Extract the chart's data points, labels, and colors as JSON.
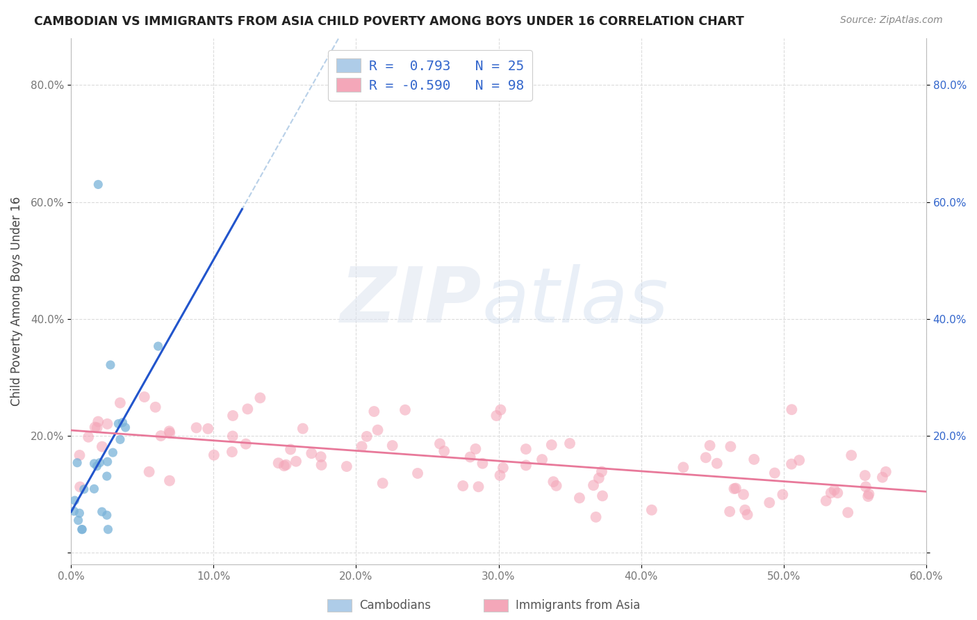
{
  "title": "CAMBODIAN VS IMMIGRANTS FROM ASIA CHILD POVERTY AMONG BOYS UNDER 16 CORRELATION CHART",
  "source": "Source: ZipAtlas.com",
  "ylabel": "Child Poverty Among Boys Under 16",
  "xlim": [
    0.0,
    0.6
  ],
  "ylim": [
    -0.02,
    0.88
  ],
  "xtick_vals": [
    0.0,
    0.1,
    0.2,
    0.3,
    0.4,
    0.5,
    0.6
  ],
  "xticklabels": [
    "0.0%",
    "10.0%",
    "20.0%",
    "30.0%",
    "40.0%",
    "50.0%",
    "60.0%"
  ],
  "ytick_vals": [
    0.0,
    0.2,
    0.4,
    0.6,
    0.8
  ],
  "yticklabels": [
    "",
    "20.0%",
    "40.0%",
    "60.0%",
    "80.0%"
  ],
  "cambodian_color": "#7ab3d9",
  "cambodian_legend_color": "#aecce8",
  "asian_color": "#f4a7b9",
  "asian_line_color": "#e8799a",
  "cambodian_line_color": "#2255cc",
  "trend_ext_color": "#b8d0e8",
  "background": "#ffffff",
  "grid_color": "#d8d8d8",
  "axis_color": "#bbbbbb",
  "tick_label_color": "#777777",
  "right_tick_color": "#3366cc",
  "legend_text_color": "#3366cc",
  "title_color": "#222222",
  "source_color": "#888888",
  "bottom_legend_color": "#555555"
}
